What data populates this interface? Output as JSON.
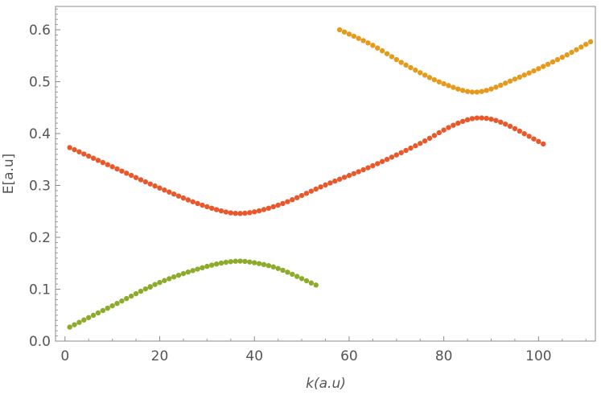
{
  "chart_data": {
    "type": "scatter",
    "title": "",
    "xlabel": "k(a.u)",
    "ylabel": "E[a.u]",
    "xlim": [
      -2,
      112
    ],
    "ylim": [
      0,
      0.645
    ],
    "x_ticks": [
      0,
      20,
      40,
      60,
      80,
      100
    ],
    "x_tick_labels": [
      "0",
      "20",
      "40",
      "60",
      "80",
      "100"
    ],
    "y_ticks": [
      0.0,
      0.1,
      0.2,
      0.3,
      0.4,
      0.5,
      0.6
    ],
    "y_tick_labels": [
      "0.0",
      "0.1",
      "0.2",
      "0.3",
      "0.4",
      "0.5",
      "0.6"
    ],
    "frame": true,
    "grid": false,
    "series": [
      {
        "color": "#8cab2b",
        "x_start": 1,
        "x_end": 53,
        "x_step": 1,
        "anchors_x": [
          1,
          10,
          20,
          30,
          36,
          40,
          45,
          53
        ],
        "anchors_y": [
          0.027,
          0.068,
          0.113,
          0.144,
          0.154,
          0.151,
          0.14,
          0.108
        ]
      },
      {
        "color": "#e8582b",
        "x_start": 1,
        "x_end": 101,
        "x_step": 1,
        "anchors_x": [
          1,
          10,
          20,
          30,
          37,
          45,
          55,
          65,
          75,
          82,
          87,
          92,
          101
        ],
        "anchors_y": [
          0.373,
          0.336,
          0.295,
          0.259,
          0.246,
          0.262,
          0.301,
          0.338,
          0.381,
          0.416,
          0.43,
          0.422,
          0.38
        ],
        "extra_points": [
          [
            18,
            0.104
          ]
        ],
        "extra_color": "#8cab2b"
      },
      {
        "color": "#e59a1b",
        "x_start": 58,
        "x_end": 111,
        "x_step": 1,
        "anchors_x": [
          58,
          65,
          72,
          80,
          87,
          95,
          105,
          111
        ],
        "anchors_y": [
          0.6,
          0.57,
          0.532,
          0.496,
          0.48,
          0.505,
          0.547,
          0.577
        ]
      }
    ]
  }
}
